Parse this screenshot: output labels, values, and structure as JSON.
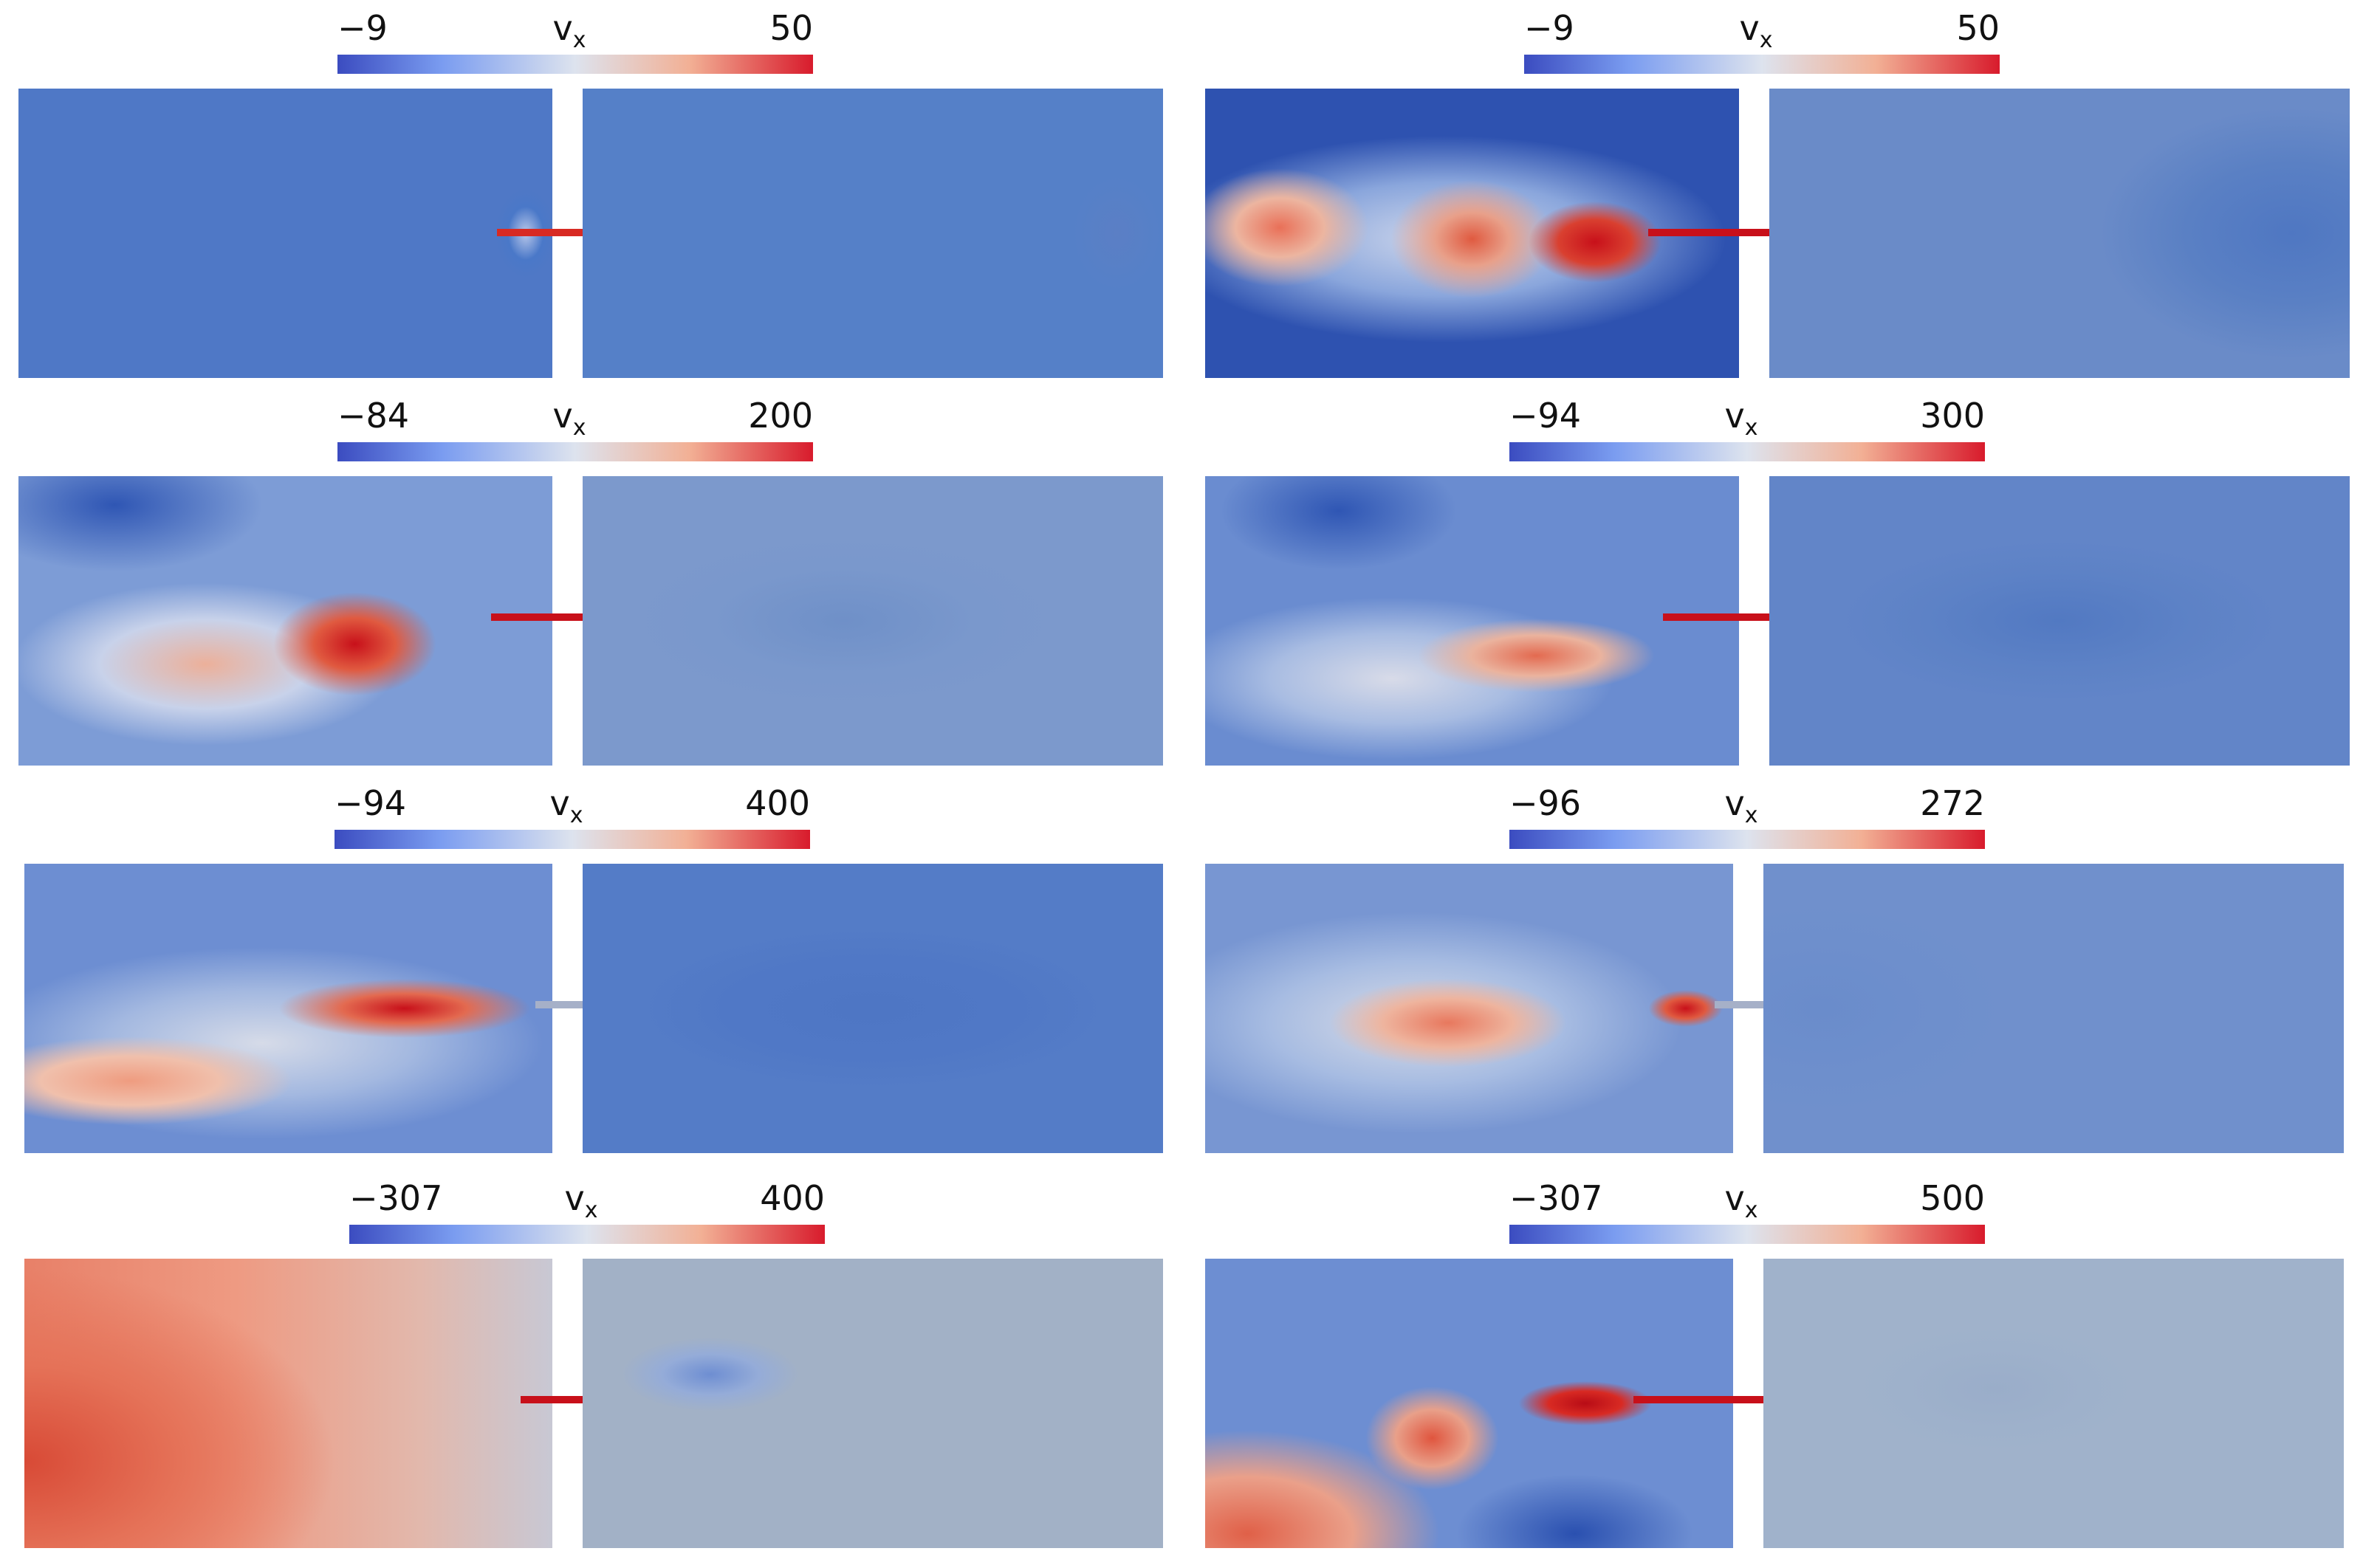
{
  "panels": [
    {
      "colorbar": {
        "min": "−9",
        "label": "v",
        "sub": "x",
        "max": "50"
      }
    },
    {
      "colorbar": {
        "min": "−9",
        "label": "v",
        "sub": "x",
        "max": "50"
      }
    },
    {
      "colorbar": {
        "min": "−84",
        "label": "v",
        "sub": "x",
        "max": "200"
      }
    },
    {
      "colorbar": {
        "min": "−94",
        "label": "v",
        "sub": "x",
        "max": "300"
      }
    },
    {
      "colorbar": {
        "min": "−94",
        "label": "v",
        "sub": "x",
        "max": "400"
      }
    },
    {
      "colorbar": {
        "min": "−96",
        "label": "v",
        "sub": "x",
        "max": "272"
      }
    },
    {
      "colorbar": {
        "min": "−307",
        "label": "v",
        "sub": "x",
        "max": "400"
      }
    },
    {
      "colorbar": {
        "min": "−307",
        "label": "v",
        "sub": "x",
        "max": "500"
      }
    }
  ],
  "colormap": {
    "low": "#3b4cc0",
    "mid": "#dde3ee",
    "high": "#d81b2c"
  }
}
